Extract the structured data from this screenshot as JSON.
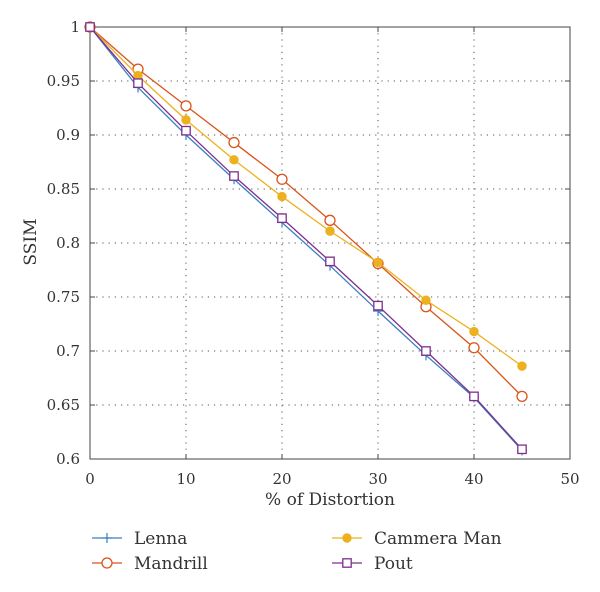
{
  "chart_data": {
    "type": "line",
    "title": "",
    "xlabel": "% of Distortion",
    "ylabel": "SSIM",
    "xlim": [
      0,
      50
    ],
    "ylim": [
      0.6,
      1.0
    ],
    "xticks": [
      "0",
      "10",
      "20",
      "30",
      "40",
      "50"
    ],
    "yticks": [
      "0.6",
      "0.65",
      "0.7",
      "0.75",
      "0.8",
      "0.85",
      "0.9",
      "0.95",
      "1"
    ],
    "grid": true,
    "grid_style": "dotted",
    "legend_position": "below",
    "x": [
      0,
      5,
      10,
      15,
      20,
      25,
      30,
      35,
      40,
      45
    ],
    "series": [
      {
        "name": "Lenna",
        "color": "#3a7fc1",
        "marker": "plus",
        "values": [
          1.0,
          0.944,
          0.9,
          0.859,
          0.819,
          0.779,
          0.737,
          0.696,
          0.657,
          0.608
        ]
      },
      {
        "name": "Mandrill",
        "color": "#d9541a",
        "marker": "circle",
        "values": [
          1.0,
          0.961,
          0.927,
          0.893,
          0.859,
          0.821,
          0.781,
          0.741,
          0.703,
          0.658
        ]
      },
      {
        "name": "Cammera Man",
        "color": "#edb120",
        "marker": "filled-circle",
        "values": [
          1.0,
          0.955,
          0.914,
          0.877,
          0.843,
          0.811,
          0.782,
          0.747,
          0.718,
          0.686
        ]
      },
      {
        "name": "Pout",
        "color": "#7e2f8e",
        "marker": "square",
        "values": [
          1.0,
          0.948,
          0.904,
          0.862,
          0.823,
          0.783,
          0.742,
          0.7,
          0.658,
          0.609
        ]
      }
    ]
  }
}
